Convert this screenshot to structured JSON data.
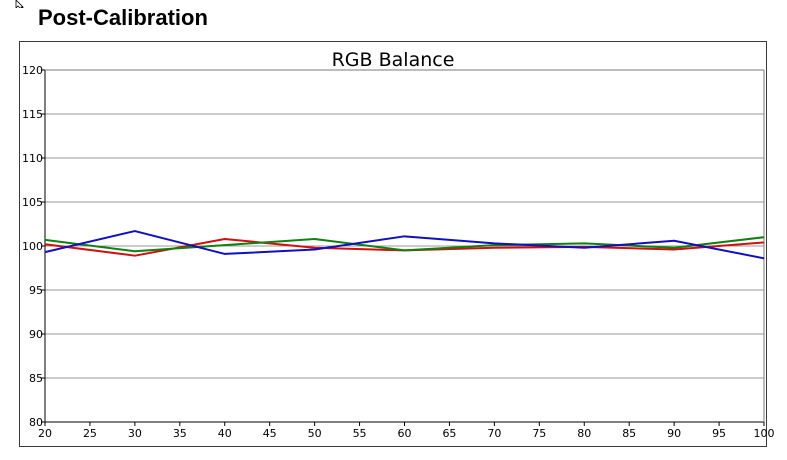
{
  "page": {
    "heading": "Post-Calibration"
  },
  "icons": {
    "cursor": "mouse-pointer-icon"
  },
  "chart_data": {
    "type": "line",
    "title": "RGB Balance",
    "xlabel": "",
    "ylabel": "",
    "xlim": [
      20,
      100
    ],
    "ylim": [
      80,
      120
    ],
    "x_ticks": [
      20,
      25,
      30,
      35,
      40,
      45,
      50,
      55,
      60,
      65,
      70,
      75,
      80,
      85,
      90,
      95,
      100
    ],
    "y_ticks": [
      80,
      85,
      90,
      95,
      100,
      105,
      110,
      115,
      120
    ],
    "grid": {
      "horizontal": true,
      "vertical": false
    },
    "legend": "none",
    "x": [
      20,
      30,
      40,
      50,
      60,
      70,
      80,
      90,
      100
    ],
    "series": [
      {
        "color": "#d01010",
        "values": [
          100.2,
          98.9,
          100.8,
          99.8,
          99.5,
          99.8,
          99.9,
          99.6,
          100.4
        ]
      },
      {
        "color": "#108010",
        "values": [
          100.7,
          99.4,
          100.1,
          100.8,
          99.5,
          100.1,
          100.3,
          99.8,
          101.0
        ]
      },
      {
        "color": "#1010c0",
        "values": [
          99.3,
          101.7,
          99.1,
          99.6,
          101.1,
          100.3,
          99.8,
          100.6,
          98.6
        ]
      }
    ]
  }
}
